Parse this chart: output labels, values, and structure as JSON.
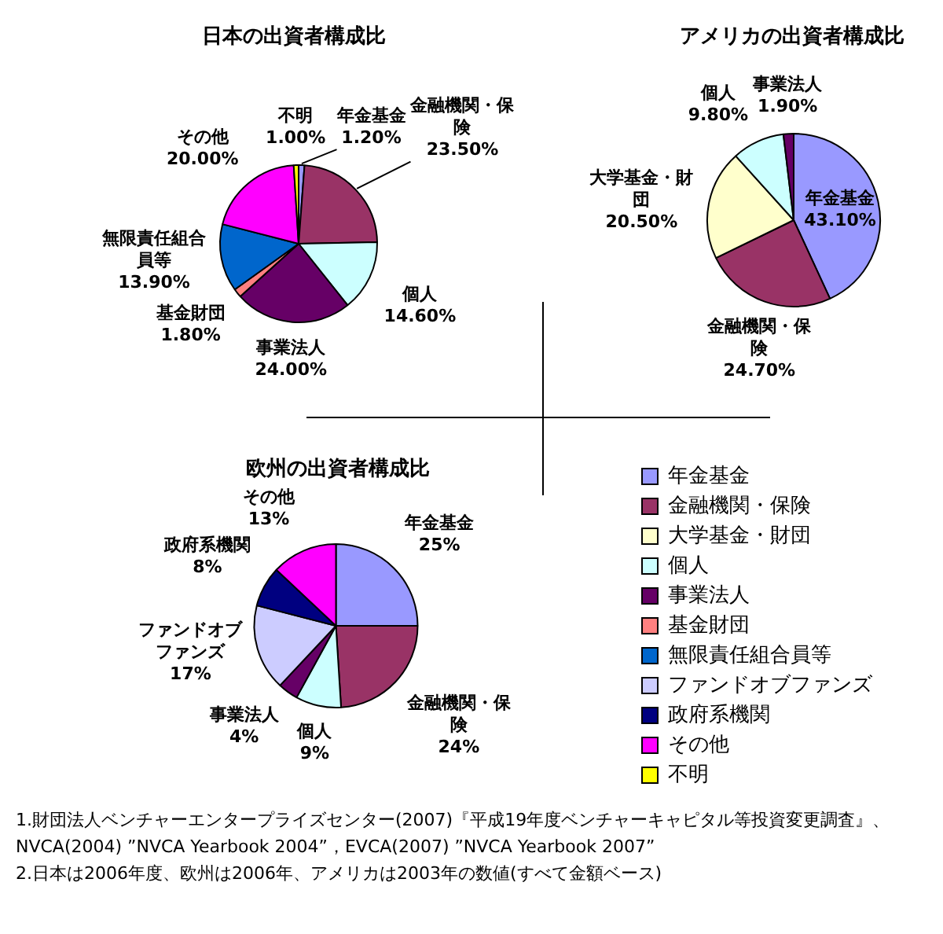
{
  "chart_data": [
    {
      "type": "pie",
      "title": "日本の出資者構成比",
      "categories": [
        "年金基金",
        "金融機関・保険",
        "個人",
        "事業法人",
        "基金財団",
        "無限責任組合員等",
        "その他",
        "不明"
      ],
      "values": [
        1.2,
        23.5,
        14.6,
        24.0,
        1.8,
        13.9,
        20.0,
        1.0
      ],
      "value_labels": [
        "1.20%",
        "23.50%",
        "14.60%",
        "24.00%",
        "1.80%",
        "13.90%",
        "20.00%",
        "1.00%"
      ],
      "colors": [
        "#9999ff",
        "#993366",
        "#ccffff",
        "#660066",
        "#ff8080",
        "#0066cc",
        "#ff00ff",
        "#ffff00"
      ]
    },
    {
      "type": "pie",
      "title": "アメリカの出資者構成比",
      "categories": [
        "年金基金",
        "金融機関・保険",
        "大学基金・財団",
        "個人",
        "事業法人"
      ],
      "values": [
        43.1,
        24.7,
        20.5,
        9.8,
        1.9
      ],
      "value_labels": [
        "43.10%",
        "24.70%",
        "20.50%",
        "9.80%",
        "1.90%"
      ],
      "colors": [
        "#9999ff",
        "#993366",
        "#ffffcc",
        "#ccffff",
        "#660066"
      ]
    },
    {
      "type": "pie",
      "title": "欧州の出資者構成比",
      "categories": [
        "年金基金",
        "金融機関・保険",
        "大学基金・財団",
        "個人",
        "事業法人",
        "基金財団",
        "無限責任組合員等",
        "ファンドオブファンズ",
        "政府系機関",
        "その他",
        "不明"
      ],
      "values": [
        25,
        24,
        null,
        9,
        4,
        null,
        null,
        17,
        8,
        13,
        null
      ],
      "value_labels": [
        "25%",
        "24%",
        null,
        "9%",
        "4%",
        null,
        null,
        "17%",
        "8%",
        "13%",
        null
      ],
      "colors": [
        "#9999ff",
        "#993366",
        "#ffffcc",
        "#ccffff",
        "#660066",
        "#ff8080",
        "#0066cc",
        "#ccccff",
        "#000080",
        "#ff00ff",
        "#ffff00"
      ],
      "legend": "right",
      "annotations": [
        "1.財団法人ベンチャーエンタープライズセンター(2007)『平成19年度ベンチャーキャピタル等投資変更調査』、NVCA(2004) ”NVCA Yearbook 2004”，EVCA(2007) ”NVCA Yearbook 2007”",
        "2.日本は2006年度、欧州は2006年、アメリカは2003年の数値(すべて金額ベース)"
      ]
    }
  ]
}
